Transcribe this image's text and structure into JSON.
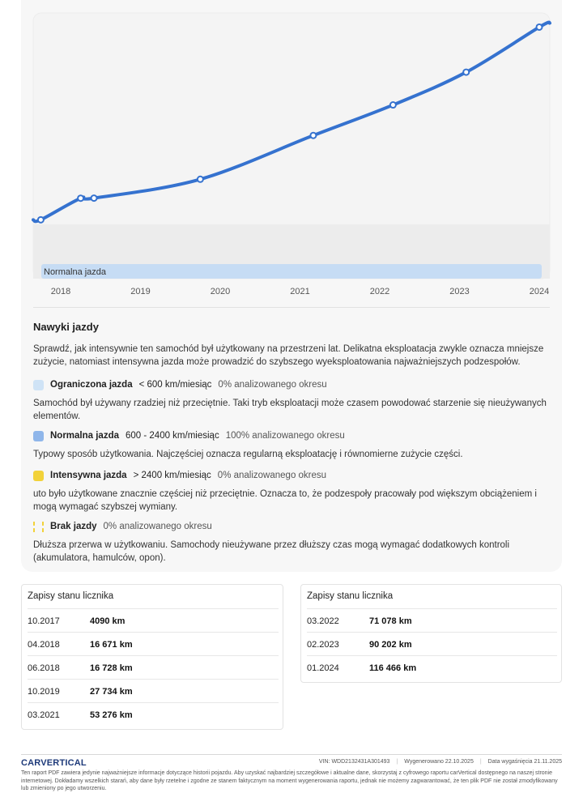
{
  "chart_data": {
    "type": "line",
    "x_ticks": [
      "2018",
      "2019",
      "2020",
      "2021",
      "2022",
      "2023",
      "2024"
    ],
    "band_label": "Normalna jazda",
    "points": [
      {
        "date": "10.2017",
        "km": 4090
      },
      {
        "date": "04.2018",
        "km": 16671
      },
      {
        "date": "06.2018",
        "km": 16728
      },
      {
        "date": "10.2019",
        "km": 27734
      },
      {
        "date": "03.2021",
        "km": 53276
      },
      {
        "date": "03.2022",
        "km": 71078
      },
      {
        "date": "02.2023",
        "km": 90202
      },
      {
        "date": "01.2024",
        "km": 116466
      }
    ],
    "line_color": "#3572cf",
    "band_color": "#c6dcf4"
  },
  "habits": {
    "title": "Nawyki jazdy",
    "intro": "Sprawdź, jak intensywnie ten samochód był użytkowany na przestrzeni lat. Delikatna eksploatacja zwykle oznacza mniejsze zużycie, natomiast intensywna jazda może prowadzić do szybszego wyeksploatowania najważniejszych podzespołów.",
    "items": [
      {
        "name": "Ograniczona jazda",
        "range": "< 600 km/miesiąc",
        "pct": "0% analizowanego okresu",
        "desc": "Samochód był używany rzadziej niż przeciętnie. Taki tryb eksploatacji może czasem powodować starzenie się nieużywanych elementów.",
        "color": "#cfe3f6"
      },
      {
        "name": "Normalna jazda",
        "range": "600 - 2400 km/miesiąc",
        "pct": "100% analizowanego okresu",
        "desc": "Typowy sposób użytkowania. Najczęściej oznacza regularną eksploatację i równomierne zużycie części.",
        "color": "#8fb6ea"
      },
      {
        "name": "Intensywna jazda",
        "range": "> 2400 km/miesiąc",
        "pct": "0% analizowanego okresu",
        "desc": "uto było użytkowane znacznie częściej niż przeciętnie. Oznacza to, że podzespoły pracowały pod większym obciążeniem i mogą wymagać szybszej wymiany.",
        "color": "#f2d23a"
      },
      {
        "name": "Brak jazdy",
        "range": "",
        "pct": "0% analizowanego okresu",
        "desc": "Dłuższa przerwa w użytkowaniu. Samochody nieużywane przez dłuższy czas mogą wymagać dodatkowych kontroli (akumulatora, hamulców, opon).",
        "color": "#f2d23a"
      }
    ]
  },
  "odometer": {
    "left": {
      "title": "Zapisy stanu licznika",
      "rows": [
        {
          "date": "10.2017",
          "km": "4090 km"
        },
        {
          "date": "04.2018",
          "km": "16 671 km"
        },
        {
          "date": "06.2018",
          "km": "16 728 km"
        },
        {
          "date": "10.2019",
          "km": "27 734 km"
        },
        {
          "date": "03.2021",
          "km": "53 276 km"
        }
      ]
    },
    "right": {
      "title": "Zapisy stanu licznika",
      "rows": [
        {
          "date": "03.2022",
          "km": "71 078 km"
        },
        {
          "date": "02.2023",
          "km": "90 202 km"
        },
        {
          "date": "01.2024",
          "km": "116 466 km"
        }
      ]
    }
  },
  "footer": {
    "logo": "CARVERTICAL",
    "vin": "VIN:  WDD2132431A301493",
    "generated": "Wygenerowano  22.10.2025",
    "expires": "Data wygaśnięcia  21.11.2025",
    "disclaimer": "Ten raport PDF zawiera jedynie najważniejsze informacje dotyczące historii pojazdu. Aby uzyskać najbardziej szczegółowe i aktualne dane, skorzystaj z cyfrowego raportu carVertical dostępnego na naszej stronie internetowej. Dokładamy wszelkich starań, aby dane były rzetelne i zgodne ze stanem faktycznym na moment wygenerowania raportu, jednak nie możemy zagwarantować, że ten plik PDF nie został zmodyfikowany lub zmieniony po jego utworzeniu."
  }
}
